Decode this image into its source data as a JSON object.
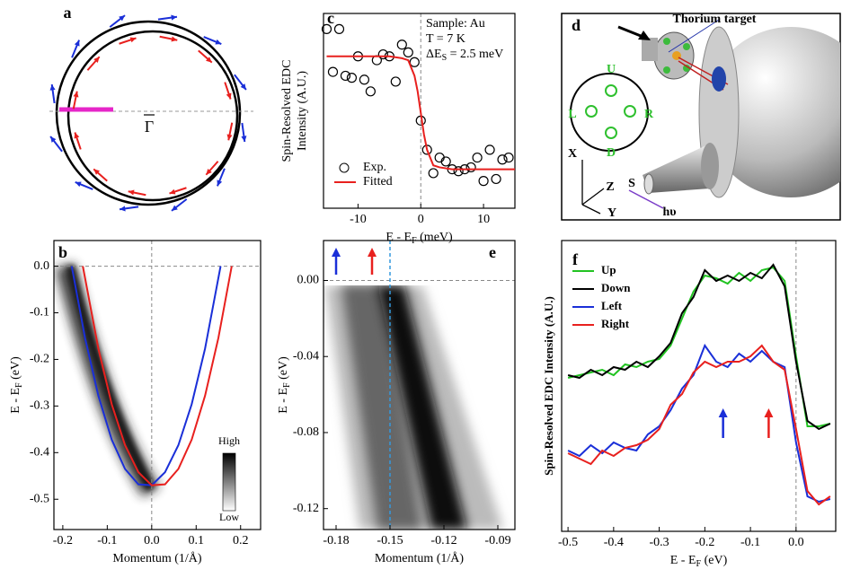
{
  "chart_data": [
    {
      "label": "c",
      "type": "scatter",
      "xlabel": [
        "E - E",
        "F",
        " (meV)"
      ],
      "ylabel": [
        "Spin-Resolved EDC",
        "Intensity (A.U.)"
      ],
      "xlim": [
        -15.5,
        15
      ],
      "ylim": [
        0,
        1
      ],
      "xticks": [
        -10,
        0,
        10
      ],
      "ref_lines": {
        "x": [
          0
        ]
      },
      "legend": "lower left",
      "annotations": [
        "Sample: Au",
        "T = 7 K"
      ],
      "annotation_sub": [
        "ΔE",
        "S",
        " = 2.5 meV"
      ],
      "series": [
        {
          "name": "Exp.",
          "type": "scatter",
          "color": "#000000",
          "x": [
            -15,
            -14,
            -13,
            -12,
            -11,
            -10,
            -9,
            -8,
            -7,
            -6,
            -5,
            -4,
            -3,
            -2,
            -1,
            0,
            1,
            2,
            3,
            4,
            5,
            6,
            7,
            8,
            9,
            10,
            11,
            12,
            13,
            14
          ],
          "values": [
            0.92,
            0.7,
            0.92,
            0.68,
            0.67,
            0.78,
            0.66,
            0.6,
            0.76,
            0.79,
            0.78,
            0.65,
            0.84,
            0.8,
            0.75,
            0.45,
            0.3,
            0.18,
            0.26,
            0.24,
            0.2,
            0.19,
            0.2,
            0.21,
            0.26,
            0.14,
            0.3,
            0.15,
            0.25,
            0.26
          ]
        },
        {
          "name": "Fitted",
          "type": "line",
          "color": "#e8201e",
          "x": [
            -15,
            -5,
            -3,
            -2,
            -1,
            -0.5,
            0,
            0.5,
            1,
            2,
            3,
            5,
            15
          ],
          "values": [
            0.78,
            0.78,
            0.77,
            0.76,
            0.68,
            0.6,
            0.49,
            0.38,
            0.3,
            0.22,
            0.21,
            0.2,
            0.2
          ]
        }
      ]
    },
    {
      "label": "b",
      "type": "line",
      "xlabel": "Momentum (1/Å)",
      "ylabel": [
        "E - E",
        "F",
        " (eV)"
      ],
      "xlim": [
        -0.22,
        0.245
      ],
      "ylim": [
        -0.565,
        0.055
      ],
      "xticks": [
        -0.2,
        -0.1,
        {
          "value": 0,
          "label": "0.0"
        },
        0.1,
        0.2
      ],
      "yticks": [
        {
          "value": 0,
          "label": "0.0"
        },
        -0.1,
        -0.2,
        -0.3,
        -0.4,
        -0.5
      ],
      "ref_lines": {
        "x": [
          0
        ],
        "y": [
          0
        ]
      },
      "colorbar": [
        "High",
        "Low"
      ],
      "series": [
        {
          "color": "#1a2fd8",
          "x": [
            -0.18,
            -0.15,
            -0.12,
            -0.09,
            -0.06,
            -0.03,
            0,
            0.03,
            0.06,
            0.09,
            0.12,
            0.155
          ],
          "values": [
            0,
            -0.154,
            -0.278,
            -0.372,
            -0.435,
            -0.468,
            -0.47,
            -0.442,
            -0.384,
            -0.296,
            -0.177,
            0
          ]
        },
        {
          "color": "#e8201e",
          "x": [
            -0.155,
            -0.12,
            -0.09,
            -0.06,
            -0.03,
            0,
            0.03,
            0.06,
            0.09,
            0.12,
            0.15,
            0.18
          ],
          "values": [
            0,
            -0.177,
            -0.296,
            -0.384,
            -0.442,
            -0.47,
            -0.468,
            -0.435,
            -0.372,
            -0.278,
            -0.154,
            0
          ]
        }
      ]
    },
    {
      "label": "e",
      "type": "heatmap",
      "xlabel": "Momentum (1/Å)",
      "ylabel": [
        "E - E",
        "F",
        " (eV)"
      ],
      "xlim": [
        -0.187,
        -0.0805
      ],
      "ylim": [
        -0.131,
        0.021
      ],
      "xticks": [
        -0.18,
        -0.15,
        -0.12,
        -0.09
      ],
      "yticks": [
        {
          "value": 0,
          "label": "0.00"
        },
        -0.04,
        -0.08,
        -0.12
      ],
      "ref_lines": {
        "y": [
          0
        ]
      },
      "marker_x": -0.15,
      "arrows": [
        {
          "x": -0.18,
          "color": "#1a2fd8"
        },
        {
          "x": -0.16,
          "color": "#e8201e"
        }
      ]
    },
    {
      "label": "f",
      "type": "line",
      "xlabel": [
        "E - E",
        "F",
        " (eV)"
      ],
      "ylabel": "Spin-Resolved EDC Intensity (A.U.)",
      "xlim": [
        -0.514,
        0.087
      ],
      "ylim": [
        -0.03,
        1.05
      ],
      "xticks": [
        -0.5,
        -0.4,
        -0.3,
        -0.2,
        -0.1,
        {
          "value": 0,
          "label": "0.0"
        }
      ],
      "ref_lines": {
        "x": [
          0
        ]
      },
      "legend": "upper left",
      "arrows": [
        {
          "x": -0.16,
          "color": "#1a2fd8"
        },
        {
          "x": -0.06,
          "color": "#e8201e"
        }
      ],
      "x": [
        -0.5,
        -0.475,
        -0.45,
        -0.425,
        -0.4,
        -0.375,
        -0.35,
        -0.325,
        -0.3,
        -0.275,
        -0.25,
        -0.225,
        -0.2,
        -0.175,
        -0.15,
        -0.125,
        -0.1,
        -0.075,
        -0.05,
        -0.025,
        0,
        0.025,
        0.05,
        0.075
      ],
      "series": [
        {
          "name": "Up",
          "color": "#22c322",
          "values": [
            0.54,
            0.55,
            0.56,
            0.57,
            0.55,
            0.59,
            0.58,
            0.6,
            0.61,
            0.66,
            0.76,
            0.86,
            0.92,
            0.91,
            0.89,
            0.93,
            0.9,
            0.94,
            0.95,
            0.9,
            0.62,
            0.36,
            0.36,
            0.37
          ]
        },
        {
          "name": "Down",
          "color": "#000000",
          "values": [
            0.55,
            0.54,
            0.57,
            0.55,
            0.58,
            0.57,
            0.6,
            0.58,
            0.62,
            0.67,
            0.78,
            0.84,
            0.94,
            0.9,
            0.92,
            0.9,
            0.93,
            0.91,
            0.96,
            0.88,
            0.6,
            0.38,
            0.35,
            0.37
          ]
        },
        {
          "name": "Left",
          "color": "#1a2fd8",
          "values": [
            0.27,
            0.25,
            0.29,
            0.26,
            0.3,
            0.28,
            0.27,
            0.33,
            0.36,
            0.42,
            0.5,
            0.55,
            0.66,
            0.6,
            0.58,
            0.63,
            0.6,
            0.64,
            0.6,
            0.58,
            0.3,
            0.1,
            0.08,
            0.09
          ]
        },
        {
          "name": "Right",
          "color": "#e8201e",
          "values": [
            0.26,
            0.24,
            0.22,
            0.27,
            0.25,
            0.28,
            0.29,
            0.31,
            0.35,
            0.44,
            0.48,
            0.56,
            0.6,
            0.58,
            0.6,
            0.6,
            0.62,
            0.66,
            0.6,
            0.57,
            0.35,
            0.12,
            0.07,
            0.1
          ]
        }
      ]
    }
  ],
  "panel_a": {
    "label": "a",
    "gamma": "Γ"
  },
  "panel_d": {
    "label": "d",
    "target": "Thorium target",
    "detectors": [
      "U",
      "L",
      "R",
      "D"
    ],
    "axes": [
      "X",
      "Z",
      "Y"
    ],
    "sample": "S",
    "photon": "hυ"
  }
}
